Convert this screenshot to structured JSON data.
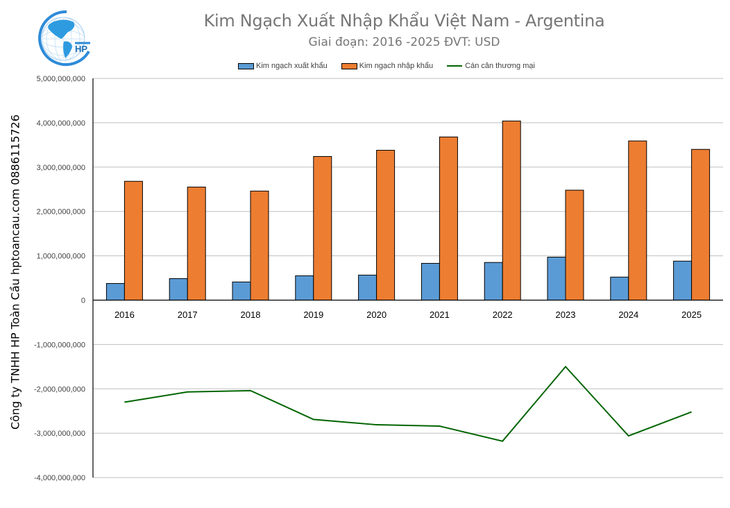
{
  "header": {
    "title": "Kim Ngạch Xuất Nhập Khẩu Việt Nam - Argentina",
    "subtitle": "Giai đoạn: 2016 -2025  ĐVT: USD",
    "logo_text": "HP"
  },
  "side_text": "Công ty TNHH HP Toàn Cầu hptoancau.com 0886115726",
  "legend": {
    "export_label": "Kim ngạch xuất khẩu",
    "import_label": "Kim ngạch nhập khẩu",
    "balance_label": "Cán cân thương mại"
  },
  "colors": {
    "export": "#5B9BD5",
    "import": "#ED7D31",
    "balance": "#006400",
    "grid": "#BFBFBF",
    "title": "#767676"
  },
  "chart_data": {
    "type": "bar",
    "title": "Kim Ngạch Xuất Nhập Khẩu Việt Nam - Argentina",
    "subtitle": "Giai đoạn: 2016 -2025  ĐVT: USD",
    "xlabel": "",
    "ylabel": "",
    "categories": [
      "2016",
      "2017",
      "2018",
      "2019",
      "2020",
      "2021",
      "2022",
      "2023",
      "2024",
      "2025"
    ],
    "series": [
      {
        "name": "Kim ngạch xuất khẩu",
        "type": "bar",
        "values": [
          376000000,
          486000000,
          410000000,
          550000000,
          565000000,
          830000000,
          850000000,
          970000000,
          520000000,
          880000000
        ]
      },
      {
        "name": "Kim ngạch nhập khẩu",
        "type": "bar",
        "values": [
          2680000000,
          2550000000,
          2460000000,
          3240000000,
          3380000000,
          3680000000,
          4040000000,
          2480000000,
          3590000000,
          3400000000
        ]
      },
      {
        "name": "Cán cân thương mại",
        "type": "line",
        "values": [
          -2300000000,
          -2070000000,
          -2040000000,
          -2690000000,
          -2810000000,
          -2840000000,
          -3180000000,
          -1500000000,
          -3060000000,
          -2520000000
        ]
      }
    ],
    "ylim": [
      -4000000000,
      5000000000
    ],
    "yticks": [
      "5,000,000,000",
      "4,000,000,000",
      "3,000,000,000",
      "2,000,000,000",
      "1,000,000,000",
      "0",
      "-1,000,000,000",
      "-2,000,000,000",
      "-3,000,000,000",
      "-4,000,000,000"
    ],
    "ytick_values": [
      5000000000,
      4000000000,
      3000000000,
      2000000000,
      1000000000,
      0,
      -1000000000,
      -2000000000,
      -3000000000,
      -4000000000
    ],
    "grid": true,
    "legend_position": "top"
  }
}
